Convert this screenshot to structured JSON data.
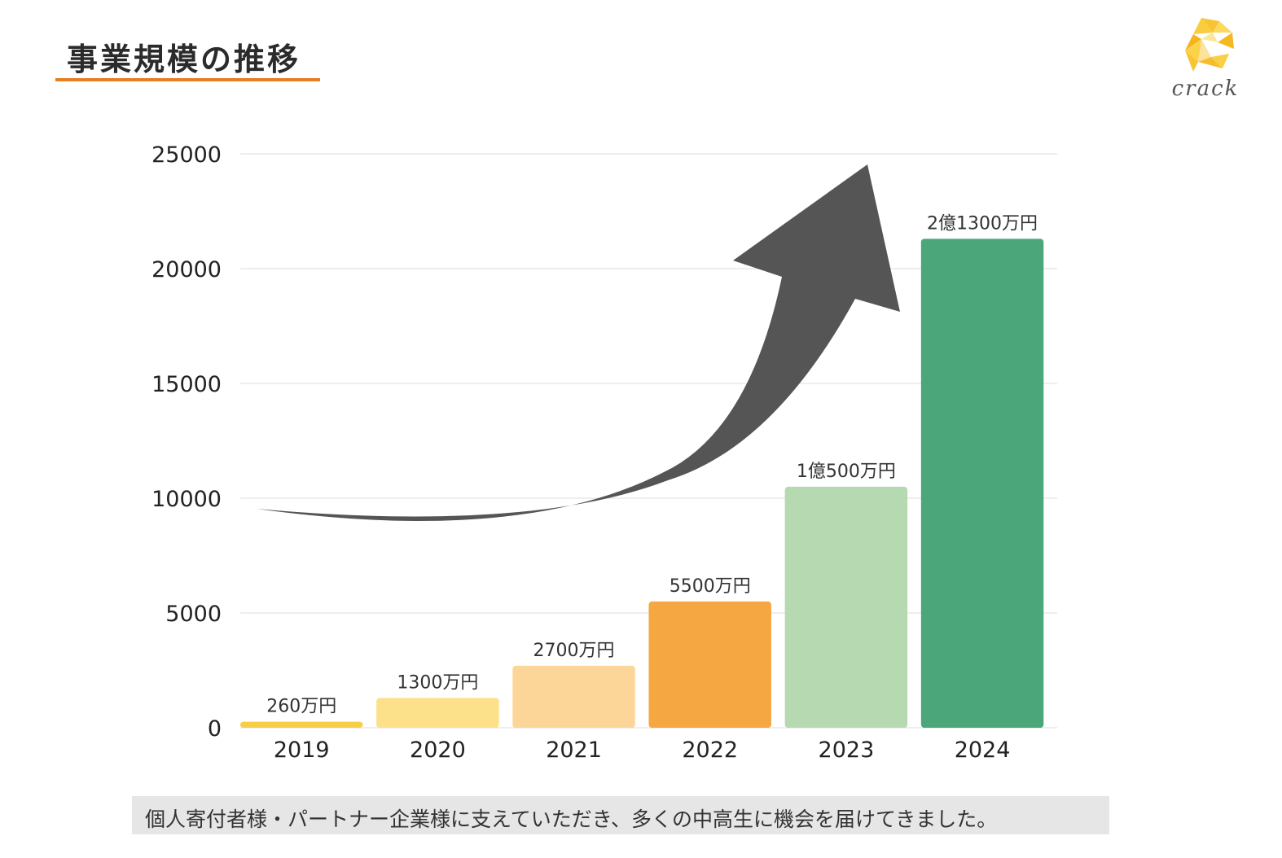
{
  "header": {
    "title": "事業規模の推移",
    "accent_color": "#e67e22"
  },
  "logo": {
    "text": "crack",
    "icon": "crack-logo-icon"
  },
  "chart_data": {
    "type": "bar",
    "categories": [
      "2019",
      "2020",
      "2021",
      "2022",
      "2023",
      "2024"
    ],
    "values": [
      260,
      1300,
      2700,
      5500,
      10500,
      21300
    ],
    "data_labels": [
      "260万円",
      "1300万円",
      "2700万円",
      "5500万円",
      "1億500万円",
      "2億1300万円"
    ],
    "colors": [
      "#f7cf47",
      "#fde08a",
      "#fcd699",
      "#f5a742",
      "#b7d9b1",
      "#4ba779"
    ],
    "ylim": [
      0,
      25000
    ],
    "yticks": [
      0,
      5000,
      10000,
      15000,
      20000,
      25000
    ],
    "grid": true,
    "legend": "none",
    "annotation_icon": "growth-arrow-icon"
  },
  "footer": {
    "text": "個人寄付者様・パートナー企業様に支えていただき、多くの中高生に機会を届けてきました。"
  }
}
